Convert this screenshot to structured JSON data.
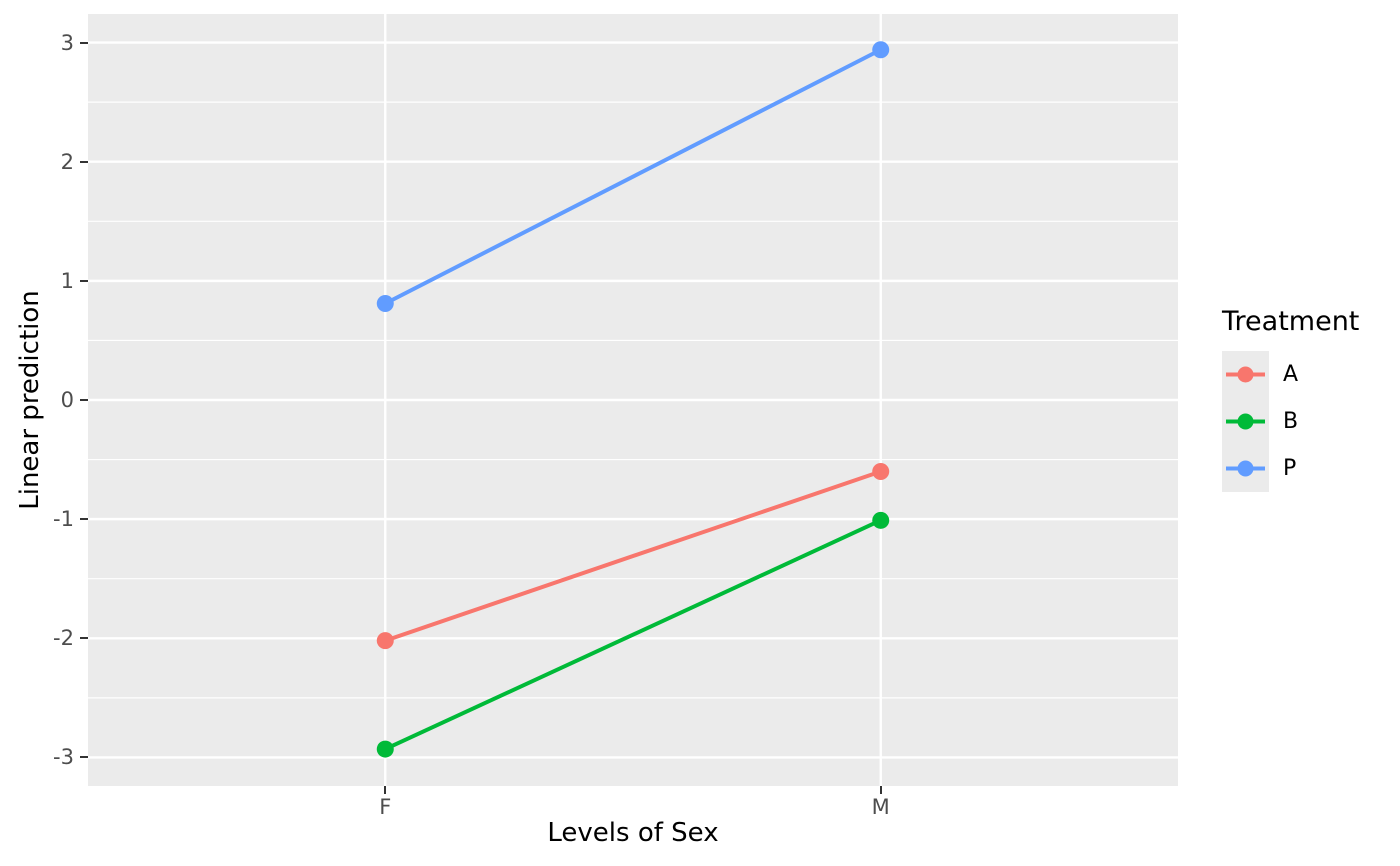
{
  "chart_data": {
    "type": "line",
    "title": "",
    "xlabel": "Levels of Sex",
    "ylabel": "Linear prediction",
    "categories": [
      "F",
      "M"
    ],
    "series": [
      {
        "name": "A",
        "color": "#F8766D",
        "values": [
          -2.02,
          -0.6
        ]
      },
      {
        "name": "B",
        "color": "#00BA38",
        "values": [
          -2.93,
          -1.01
        ]
      },
      {
        "name": "P",
        "color": "#619CFF",
        "values": [
          0.81,
          2.94
        ]
      }
    ],
    "y_ticks": [
      -3,
      -2,
      -1,
      0,
      1,
      2,
      3
    ],
    "y_tick_labels": [
      "-3",
      "-2",
      "-1",
      "0",
      "1",
      "2",
      "3"
    ],
    "y_minor_ticks": [
      -2.5,
      -1.5,
      -0.5,
      0.5,
      1.5,
      2.5
    ],
    "ylim": [
      -3.24,
      3.24
    ],
    "grid": "on",
    "legend": {
      "title": "Treatment",
      "position": "right"
    },
    "colors": {
      "panel_bg": "#EBEBEB",
      "grid": "#FFFFFF",
      "tick_mark": "#333333",
      "tick_label": "#4D4D4D",
      "axis_title": "#000000",
      "legend_key_bg": "#EBEBEB"
    }
  }
}
